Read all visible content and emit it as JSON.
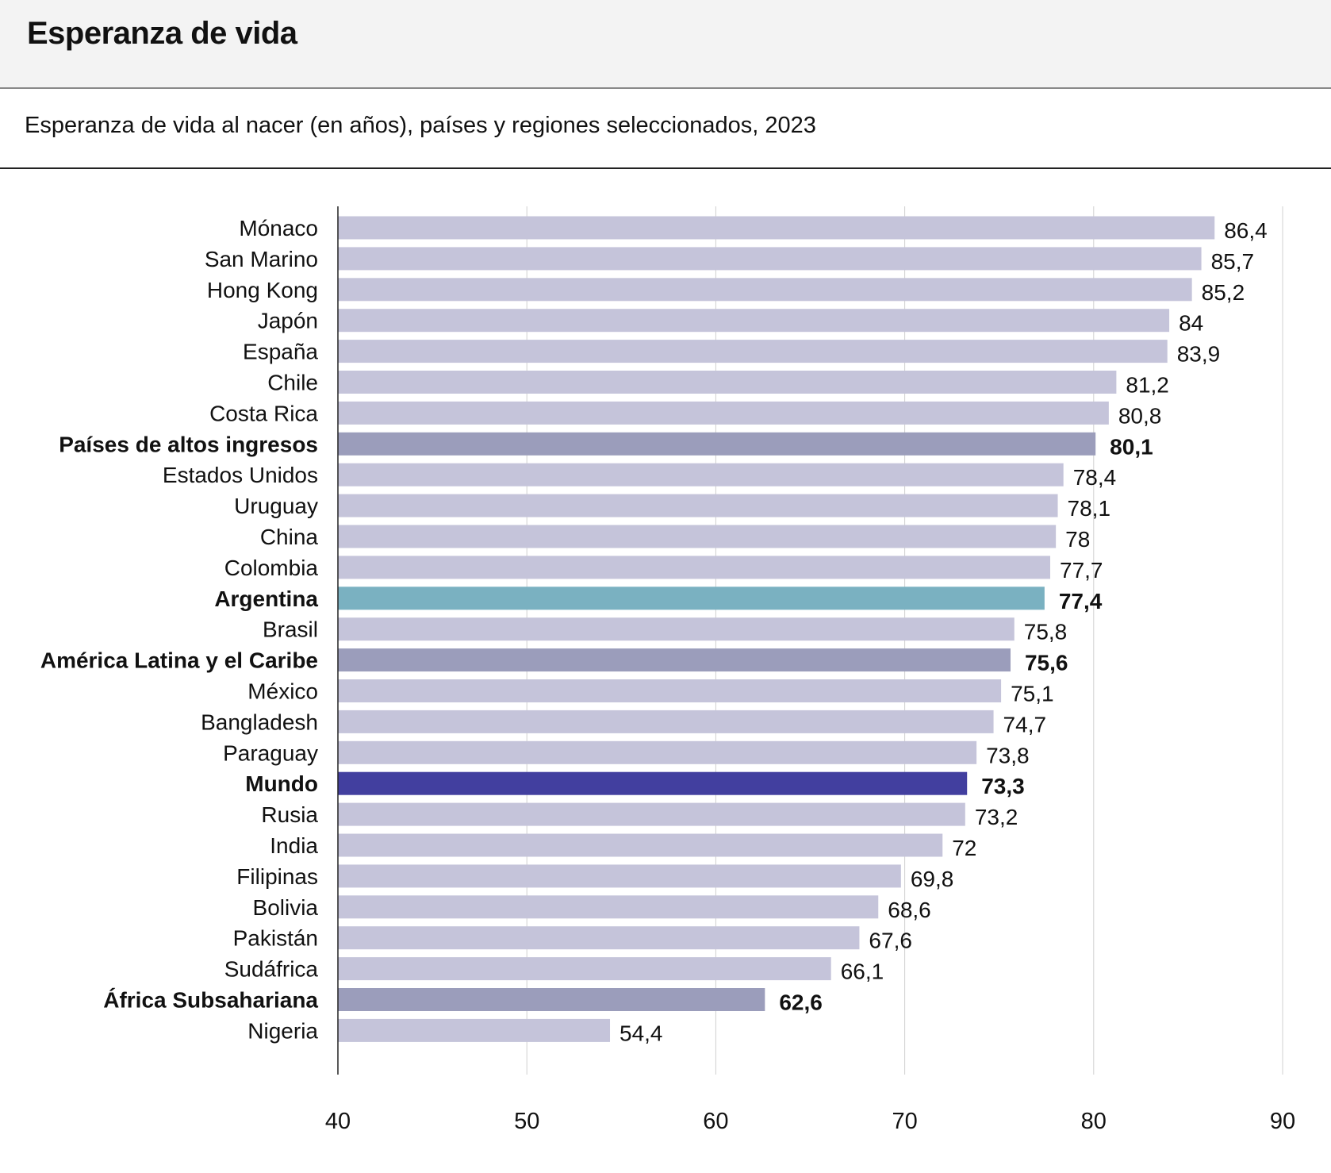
{
  "header": {
    "title": "Esperanza de vida"
  },
  "chart_data": {
    "type": "bar",
    "orientation": "horizontal",
    "title": "Esperanza de vida",
    "subtitle": "Esperanza de vida al nacer (en años), países y regiones seleccionados, 2023",
    "xlim": [
      40,
      90
    ],
    "xticks": [
      "40",
      "50",
      "60",
      "70",
      "80",
      "90"
    ],
    "xtick_values": [
      40,
      50,
      60,
      70,
      80,
      90
    ],
    "grid": true,
    "colors": {
      "country": "#c5c4da",
      "region": "#9b9dbb",
      "highlight": "#7ab1c1",
      "world": "#423f9f"
    },
    "categories": [
      "Mónaco",
      "San Marino",
      "Hong Kong",
      "Japón",
      "España",
      "Chile",
      "Costa Rica",
      "Países de altos ingresos",
      "Estados Unidos",
      "Uruguay",
      "China",
      "Colombia",
      "Argentina",
      "Brasil",
      "América Latina y el Caribe",
      "México",
      "Bangladesh",
      "Paraguay",
      "Mundo",
      "Rusia",
      "India",
      "Filipinas",
      "Bolivia",
      "Pakistán",
      "Sudáfrica",
      "África Subsahariana",
      "Nigeria"
    ],
    "values": [
      86.4,
      85.7,
      85.2,
      84,
      83.9,
      81.2,
      80.8,
      80.1,
      78.4,
      78.1,
      78,
      77.7,
      77.4,
      75.8,
      75.6,
      75.1,
      74.7,
      73.8,
      73.3,
      73.2,
      72,
      69.8,
      68.6,
      67.6,
      66.1,
      62.6,
      54.4
    ],
    "value_labels": [
      "86,4",
      "85,7",
      "85,2",
      "84",
      "83,9",
      "81,2",
      "80,8",
      "80,1",
      "78,4",
      "78,1",
      "78",
      "77,7",
      "77,4",
      "75,8",
      "75,6",
      "75,1",
      "74,7",
      "73,8",
      "73,3",
      "73,2",
      "72",
      "69,8",
      "68,6",
      "67,6",
      "66,1",
      "62,6",
      "54,4"
    ],
    "kinds": [
      "country",
      "country",
      "country",
      "country",
      "country",
      "country",
      "country",
      "region",
      "country",
      "country",
      "country",
      "country",
      "highlight",
      "country",
      "region",
      "country",
      "country",
      "country",
      "world",
      "country",
      "country",
      "country",
      "country",
      "country",
      "country",
      "region",
      "country"
    ]
  }
}
